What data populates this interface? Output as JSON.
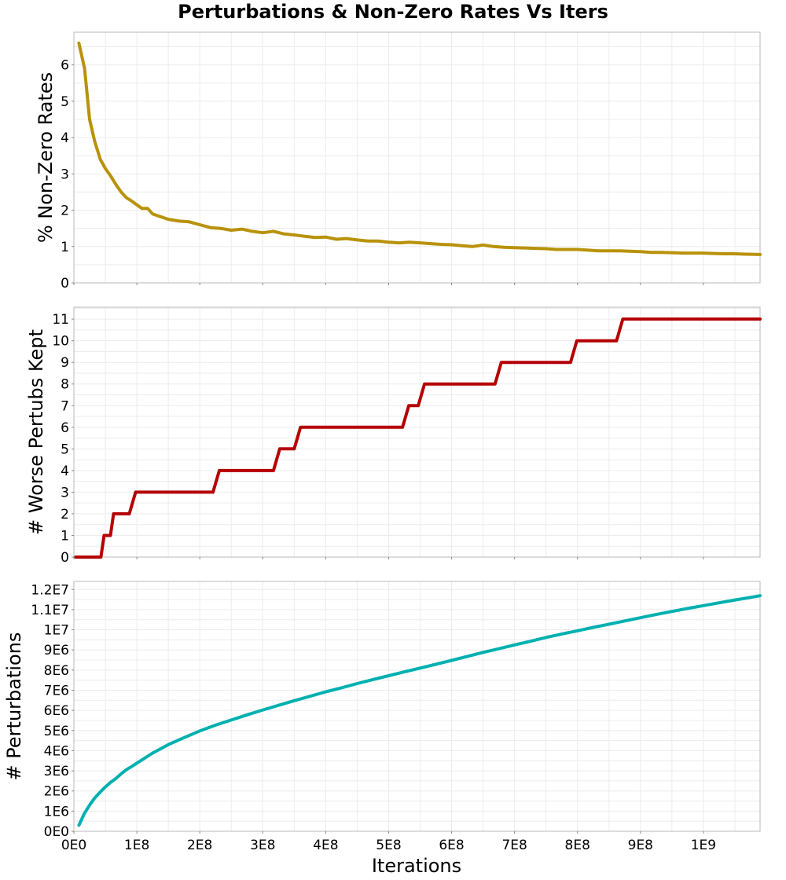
{
  "title": "Perturbations & Non-Zero Rates Vs Iters",
  "xlabel": "Iterations",
  "x_ticks": [
    {
      "value": 0,
      "label": "0E0"
    },
    {
      "value": 100000000,
      "label": "1E8"
    },
    {
      "value": 200000000,
      "label": "2E8"
    },
    {
      "value": 300000000,
      "label": "3E8"
    },
    {
      "value": 400000000,
      "label": "4E8"
    },
    {
      "value": 500000000,
      "label": "5E8"
    },
    {
      "value": 600000000,
      "label": "6E8"
    },
    {
      "value": 700000000,
      "label": "7E8"
    },
    {
      "value": 800000000,
      "label": "8E8"
    },
    {
      "value": 900000000,
      "label": "9E8"
    },
    {
      "value": 1000000000,
      "label": "1E9"
    }
  ],
  "chart_data": [
    {
      "type": "line",
      "ylabel": "% Non-Zero Rates",
      "color": "#b8920a",
      "xlim": [
        0,
        1090000000
      ],
      "ylim": [
        0,
        6.9
      ],
      "grid": true,
      "y_ticks": [
        {
          "value": 0,
          "label": "0"
        },
        {
          "value": 1,
          "label": "1"
        },
        {
          "value": 2,
          "label": "2"
        },
        {
          "value": 3,
          "label": "3"
        },
        {
          "value": 4,
          "label": "4"
        },
        {
          "value": 5,
          "label": "5"
        },
        {
          "value": 6,
          "label": "6"
        }
      ],
      "x": [
        8000000,
        17000000,
        25000000,
        33000000,
        42000000,
        50000000,
        58000000,
        67000000,
        75000000,
        83000000,
        92000000,
        100000000,
        108000000,
        117000000,
        125000000,
        133000000,
        150000000,
        167000000,
        183000000,
        200000000,
        217000000,
        233000000,
        250000000,
        267000000,
        283000000,
        300000000,
        317000000,
        333000000,
        350000000,
        367000000,
        383000000,
        400000000,
        417000000,
        433000000,
        450000000,
        467000000,
        483000000,
        500000000,
        517000000,
        533000000,
        550000000,
        567000000,
        583000000,
        600000000,
        617000000,
        633000000,
        650000000,
        667000000,
        683000000,
        700000000,
        717000000,
        733000000,
        750000000,
        767000000,
        783000000,
        800000000,
        817000000,
        833000000,
        850000000,
        867000000,
        883000000,
        900000000,
        917000000,
        933000000,
        950000000,
        967000000,
        983000000,
        1000000000,
        1017000000,
        1033000000,
        1050000000,
        1067000000,
        1090000000
      ],
      "y": [
        6.6,
        5.9,
        4.5,
        3.9,
        3.4,
        3.15,
        2.95,
        2.7,
        2.5,
        2.35,
        2.25,
        2.15,
        2.05,
        2.05,
        1.9,
        1.85,
        1.75,
        1.7,
        1.68,
        1.6,
        1.52,
        1.5,
        1.45,
        1.48,
        1.42,
        1.38,
        1.42,
        1.35,
        1.32,
        1.28,
        1.25,
        1.26,
        1.2,
        1.22,
        1.18,
        1.15,
        1.15,
        1.12,
        1.1,
        1.12,
        1.1,
        1.08,
        1.06,
        1.05,
        1.02,
        1.0,
        1.04,
        1.0,
        0.98,
        0.97,
        0.96,
        0.95,
        0.94,
        0.92,
        0.92,
        0.92,
        0.9,
        0.88,
        0.88,
        0.88,
        0.87,
        0.86,
        0.84,
        0.84,
        0.83,
        0.82,
        0.82,
        0.82,
        0.81,
        0.8,
        0.8,
        0.79,
        0.78
      ]
    },
    {
      "type": "line",
      "ylabel": "# Worse Pertubs Kept",
      "color": "#b50000",
      "xlim": [
        0,
        1090000000
      ],
      "ylim": [
        0,
        11.55
      ],
      "grid": true,
      "y_ticks": [
        {
          "value": 0,
          "label": "0"
        },
        {
          "value": 1,
          "label": "1"
        },
        {
          "value": 2,
          "label": "2"
        },
        {
          "value": 3,
          "label": "3"
        },
        {
          "value": 4,
          "label": "4"
        },
        {
          "value": 5,
          "label": "5"
        },
        {
          "value": 6,
          "label": "6"
        },
        {
          "value": 7,
          "label": "7"
        },
        {
          "value": 8,
          "label": "8"
        },
        {
          "value": 9,
          "label": "9"
        },
        {
          "value": 10,
          "label": "10"
        },
        {
          "value": 11,
          "label": "11"
        }
      ],
      "x": [
        3000000,
        43000000,
        48000000,
        58000000,
        63000000,
        73000000,
        88000000,
        98000000,
        221000000,
        231000000,
        317000000,
        327000000,
        350000000,
        360000000,
        522000000,
        532000000,
        547000000,
        557000000,
        669000000,
        679000000,
        789000000,
        799000000,
        862000000,
        872000000,
        1090000000
      ],
      "y": [
        0,
        0,
        1,
        1,
        2,
        2,
        2,
        3,
        3,
        4,
        4,
        5,
        5,
        6,
        6,
        7,
        7,
        8,
        8,
        9,
        9,
        10,
        10,
        11,
        11
      ]
    },
    {
      "type": "line",
      "ylabel": "# Perturbations",
      "color": "#00b0b0",
      "xlim": [
        0,
        1090000000
      ],
      "ylim": [
        0,
        12400000
      ],
      "grid": true,
      "y_ticks": [
        {
          "value": 0,
          "label": "0E0"
        },
        {
          "value": 1000000,
          "label": "1E6"
        },
        {
          "value": 2000000,
          "label": "2E6"
        },
        {
          "value": 3000000,
          "label": "3E6"
        },
        {
          "value": 4000000,
          "label": "4E6"
        },
        {
          "value": 5000000,
          "label": "5E6"
        },
        {
          "value": 6000000,
          "label": "6E6"
        },
        {
          "value": 7000000,
          "label": "7E6"
        },
        {
          "value": 8000000,
          "label": "8E6"
        },
        {
          "value": 9000000,
          "label": "9E6"
        },
        {
          "value": 10000000,
          "label": "1E7"
        },
        {
          "value": 11000000,
          "label": "1.1E7"
        },
        {
          "value": 12000000,
          "label": "1.2E7"
        }
      ],
      "x": [
        8000000,
        17000000,
        25000000,
        33000000,
        42000000,
        50000000,
        58000000,
        67000000,
        75000000,
        83000000,
        92000000,
        100000000,
        125000000,
        150000000,
        175000000,
        200000000,
        225000000,
        250000000,
        275000000,
        300000000,
        325000000,
        350000000,
        375000000,
        400000000,
        425000000,
        450000000,
        475000000,
        500000000,
        525000000,
        550000000,
        575000000,
        600000000,
        625000000,
        650000000,
        675000000,
        700000000,
        725000000,
        750000000,
        775000000,
        800000000,
        825000000,
        850000000,
        875000000,
        900000000,
        925000000,
        950000000,
        975000000,
        1000000000,
        1025000000,
        1050000000,
        1075000000,
        1090000000
      ],
      "y": [
        300000,
        900000,
        1300000,
        1650000,
        1950000,
        2200000,
        2420000,
        2630000,
        2850000,
        3050000,
        3220000,
        3380000,
        3880000,
        4300000,
        4650000,
        4980000,
        5270000,
        5520000,
        5780000,
        6020000,
        6250000,
        6480000,
        6700000,
        6920000,
        7120000,
        7330000,
        7530000,
        7720000,
        7910000,
        8100000,
        8290000,
        8480000,
        8680000,
        8880000,
        9060000,
        9250000,
        9430000,
        9620000,
        9790000,
        9950000,
        10120000,
        10280000,
        10440000,
        10600000,
        10760000,
        10910000,
        11060000,
        11200000,
        11340000,
        11480000,
        11610000,
        11690000
      ]
    }
  ]
}
